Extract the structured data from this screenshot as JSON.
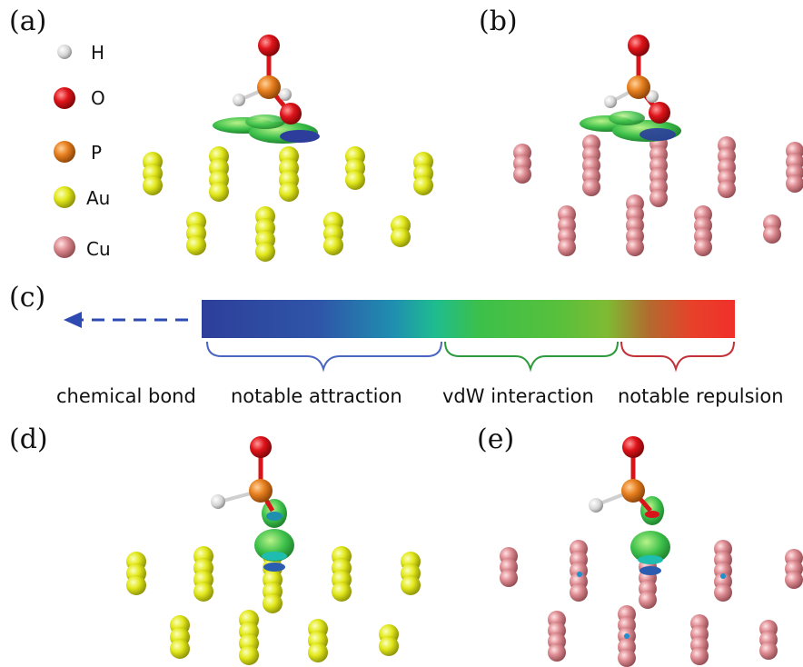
{
  "panels": {
    "a": "(a)",
    "b": "(b)",
    "c": "(c)",
    "d": "(d)",
    "e": "(e)"
  },
  "legend": {
    "h": "H",
    "o": "O",
    "p": "P",
    "au": "Au",
    "cu": "Cu"
  },
  "scale": {
    "chemical_bond": "chemical bond",
    "notable_attraction": "notable attraction",
    "vdw_interaction": "vdW interaction",
    "notable_repulsion": "notable repulsion"
  },
  "colors": {
    "H": "#e4e4e4",
    "O": "#d8141a",
    "P": "#e57a1c",
    "Au": "#e4ea1c",
    "Cu": "#dd8a8f",
    "bond_attraction": "#2d3f9a",
    "vdw": "#3cc04a",
    "repulsion": "#e8412a",
    "bracket_attraction": "#4a66c2",
    "bracket_vdw": "#2e9a3e",
    "bracket_repulsion": "#c23238"
  }
}
